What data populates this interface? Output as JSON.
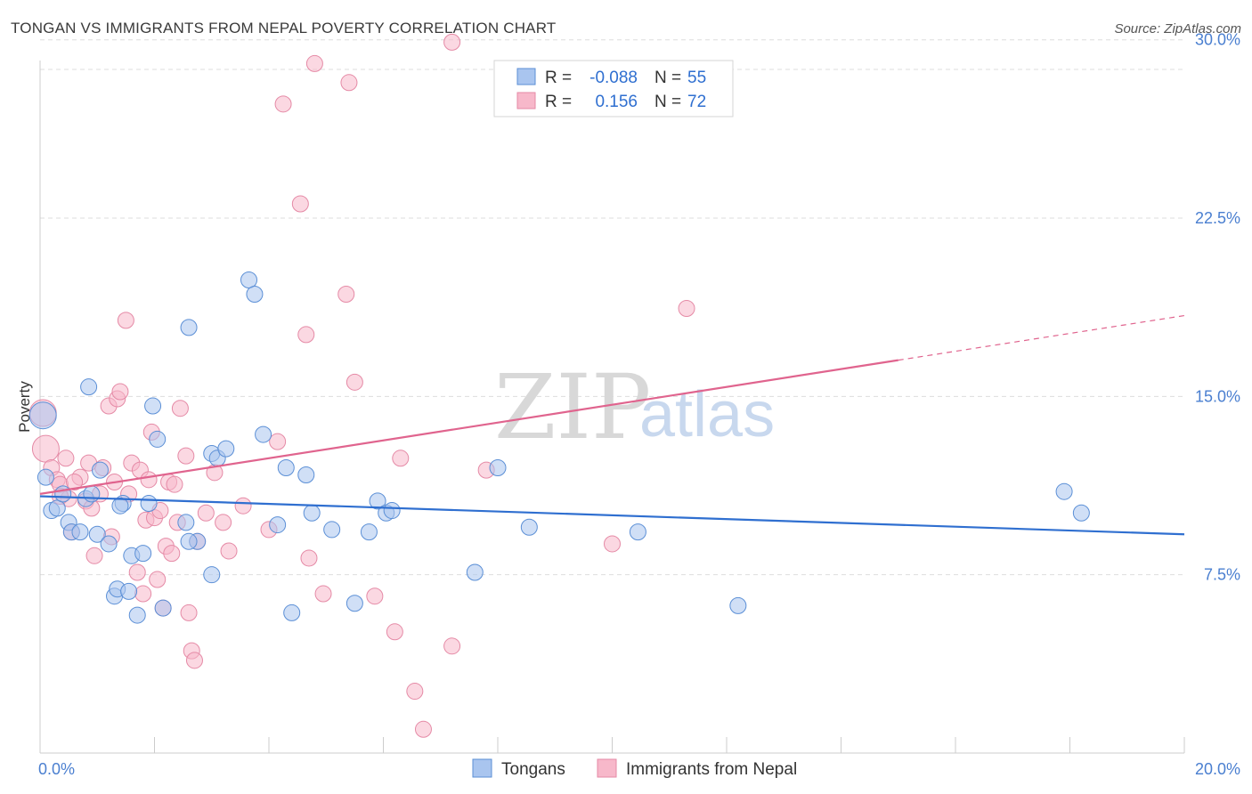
{
  "title": "TONGAN VS IMMIGRANTS FROM NEPAL POVERTY CORRELATION CHART",
  "source": "Source: ZipAtlas.com",
  "watermark": {
    "zip": "ZIP",
    "atlas": "atlas"
  },
  "chart_data": {
    "type": "scatter",
    "title": "TONGAN VS IMMIGRANTS FROM NEPAL POVERTY CORRELATION CHART",
    "xlabel": "",
    "ylabel": "Poverty",
    "xlim": [
      0,
      20
    ],
    "ylim": [
      0,
      31
    ],
    "x_tick_labels": [
      {
        "value": 0,
        "label": "0.0%"
      },
      {
        "value": 20,
        "label": "20.0%"
      }
    ],
    "y_tick_labels": [
      {
        "value": 7.5,
        "label": "7.5%"
      },
      {
        "value": 15,
        "label": "15.0%"
      },
      {
        "value": 22.5,
        "label": "22.5%"
      },
      {
        "value": 30,
        "label": "30.0%"
      }
    ],
    "colors": {
      "tongans_fill": "#a9c5ef",
      "tongans_stroke": "#5b8fd6",
      "tongans_line": "#2f6fd0",
      "nepal_fill": "#f7b8ca",
      "nepal_stroke": "#e58aa6",
      "nepal_line": "#e0648e",
      "grid": "#dddddd",
      "tick_text": "#4a7fd0"
    },
    "stats_legend": [
      {
        "series": "Tongans",
        "r_label": "R =",
        "r_value": "-0.088",
        "n_label": "N =",
        "n_value": "55"
      },
      {
        "series": "Immigrants from Nepal",
        "r_label": "R =",
        "r_value": "0.156",
        "n_label": "N =",
        "n_value": "72"
      }
    ],
    "series": [
      {
        "name": "Tongans",
        "trend": {
          "x0": 0,
          "y0": 10.8,
          "x1": 20,
          "y1": 9.2,
          "dash_from": null
        },
        "points": [
          [
            0.1,
            11.6
          ],
          [
            0.2,
            10.2
          ],
          [
            0.3,
            10.3
          ],
          [
            0.4,
            10.9
          ],
          [
            0.5,
            9.7
          ],
          [
            0.55,
            9.3
          ],
          [
            0.7,
            9.3
          ],
          [
            0.8,
            10.7
          ],
          [
            0.85,
            15.4
          ],
          [
            0.9,
            10.9
          ],
          [
            1.0,
            9.2
          ],
          [
            1.05,
            11.9
          ],
          [
            1.2,
            8.8
          ],
          [
            1.3,
            6.6
          ],
          [
            1.35,
            6.9
          ],
          [
            1.45,
            10.5
          ],
          [
            1.55,
            6.8
          ],
          [
            1.6,
            8.3
          ],
          [
            1.7,
            5.8
          ],
          [
            1.8,
            8.4
          ],
          [
            1.9,
            10.5
          ],
          [
            1.97,
            14.6
          ],
          [
            2.05,
            13.2
          ],
          [
            2.15,
            6.1
          ],
          [
            2.55,
            9.7
          ],
          [
            2.6,
            17.9
          ],
          [
            2.75,
            8.9
          ],
          [
            3.0,
            7.5
          ],
          [
            3.0,
            12.6
          ],
          [
            3.1,
            12.4
          ],
          [
            3.25,
            12.8
          ],
          [
            3.65,
            19.9
          ],
          [
            3.75,
            19.3
          ],
          [
            3.9,
            13.4
          ],
          [
            4.15,
            9.6
          ],
          [
            4.4,
            5.9
          ],
          [
            4.3,
            12.0
          ],
          [
            4.65,
            11.7
          ],
          [
            4.75,
            10.1
          ],
          [
            5.1,
            9.4
          ],
          [
            5.5,
            6.3
          ],
          [
            5.75,
            9.3
          ],
          [
            5.9,
            10.6
          ],
          [
            6.05,
            10.1
          ],
          [
            6.15,
            10.2
          ],
          [
            7.6,
            7.6
          ],
          [
            8.0,
            12.0
          ],
          [
            8.55,
            9.5
          ],
          [
            10.45,
            9.3
          ],
          [
            12.2,
            6.2
          ],
          [
            17.9,
            11.0
          ],
          [
            18.2,
            10.1
          ],
          [
            0.05,
            14.2
          ],
          [
            1.4,
            10.4
          ],
          [
            2.6,
            8.9
          ]
        ]
      },
      {
        "name": "Immigrants from Nepal",
        "trend": {
          "x0": 0,
          "y0": 10.9,
          "x1": 20,
          "y1": 18.4,
          "dash_from": 15.0
        },
        "points": [
          [
            0.05,
            14.3
          ],
          [
            0.1,
            12.8
          ],
          [
            0.2,
            12.0
          ],
          [
            0.3,
            11.5
          ],
          [
            0.35,
            11.3
          ],
          [
            0.45,
            12.4
          ],
          [
            0.5,
            10.7
          ],
          [
            0.55,
            9.3
          ],
          [
            0.7,
            11.6
          ],
          [
            0.8,
            10.6
          ],
          [
            0.85,
            12.2
          ],
          [
            0.9,
            10.3
          ],
          [
            0.95,
            8.3
          ],
          [
            1.05,
            10.9
          ],
          [
            1.1,
            12.0
          ],
          [
            1.2,
            14.6
          ],
          [
            1.25,
            9.1
          ],
          [
            1.3,
            11.4
          ],
          [
            1.35,
            14.9
          ],
          [
            1.4,
            15.2
          ],
          [
            1.5,
            18.2
          ],
          [
            1.55,
            10.9
          ],
          [
            1.6,
            12.2
          ],
          [
            1.7,
            7.6
          ],
          [
            1.75,
            11.9
          ],
          [
            1.8,
            6.7
          ],
          [
            1.85,
            9.8
          ],
          [
            1.9,
            11.5
          ],
          [
            1.95,
            13.5
          ],
          [
            2.0,
            9.9
          ],
          [
            2.05,
            7.3
          ],
          [
            2.1,
            10.2
          ],
          [
            2.15,
            6.1
          ],
          [
            2.2,
            8.7
          ],
          [
            2.25,
            11.4
          ],
          [
            2.3,
            8.4
          ],
          [
            2.35,
            11.3
          ],
          [
            2.4,
            9.7
          ],
          [
            2.45,
            14.5
          ],
          [
            2.55,
            12.5
          ],
          [
            2.6,
            5.9
          ],
          [
            2.65,
            4.3
          ],
          [
            2.7,
            3.9
          ],
          [
            2.75,
            8.9
          ],
          [
            2.9,
            10.1
          ],
          [
            3.05,
            11.8
          ],
          [
            3.2,
            9.7
          ],
          [
            3.3,
            8.5
          ],
          [
            3.55,
            10.4
          ],
          [
            4.0,
            9.4
          ],
          [
            4.15,
            13.1
          ],
          [
            4.25,
            27.3
          ],
          [
            4.55,
            23.1
          ],
          [
            4.65,
            17.6
          ],
          [
            4.7,
            8.2
          ],
          [
            4.8,
            29.0
          ],
          [
            4.95,
            6.7
          ],
          [
            5.35,
            19.3
          ],
          [
            5.4,
            28.2
          ],
          [
            5.5,
            15.6
          ],
          [
            5.85,
            6.6
          ],
          [
            6.2,
            5.1
          ],
          [
            6.3,
            12.4
          ],
          [
            6.55,
            2.6
          ],
          [
            6.7,
            1.0
          ],
          [
            7.2,
            4.5
          ],
          [
            7.2,
            29.9
          ],
          [
            7.8,
            11.9
          ],
          [
            10.0,
            8.8
          ],
          [
            11.3,
            18.7
          ],
          [
            0.35,
            10.8
          ],
          [
            0.6,
            11.4
          ]
        ]
      }
    ]
  },
  "bottom_legend": [
    {
      "label": "Tongans"
    },
    {
      "label": "Immigrants from Nepal"
    }
  ]
}
